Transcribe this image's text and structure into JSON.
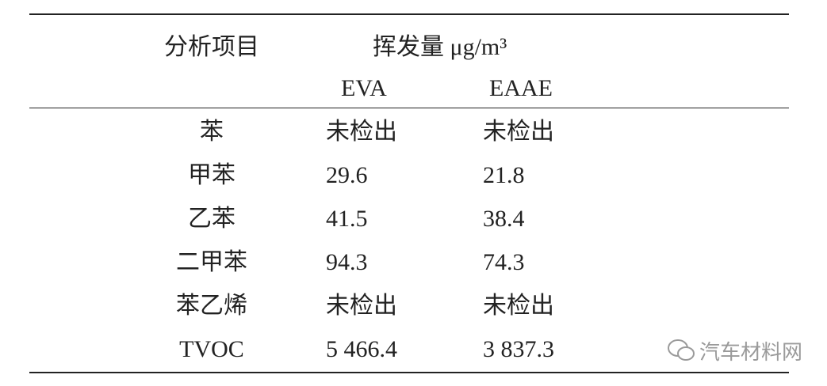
{
  "table": {
    "header": [
      "分析项目",
      "挥发量 μg/m³"
    ],
    "subheader": [
      "EVA",
      "EAAE"
    ],
    "rows": [
      [
        "苯",
        "未检出",
        "未检出"
      ],
      [
        "甲苯",
        "29.6",
        "21.8"
      ],
      [
        "乙苯",
        "41.5",
        "38.4"
      ],
      [
        "二甲苯",
        "94.3",
        "74.3"
      ],
      [
        "苯乙烯",
        "未检出",
        "未检出"
      ],
      [
        "TVOC",
        "5 466.4",
        "3 837.3"
      ]
    ]
  },
  "watermark": "汽车材料网"
}
